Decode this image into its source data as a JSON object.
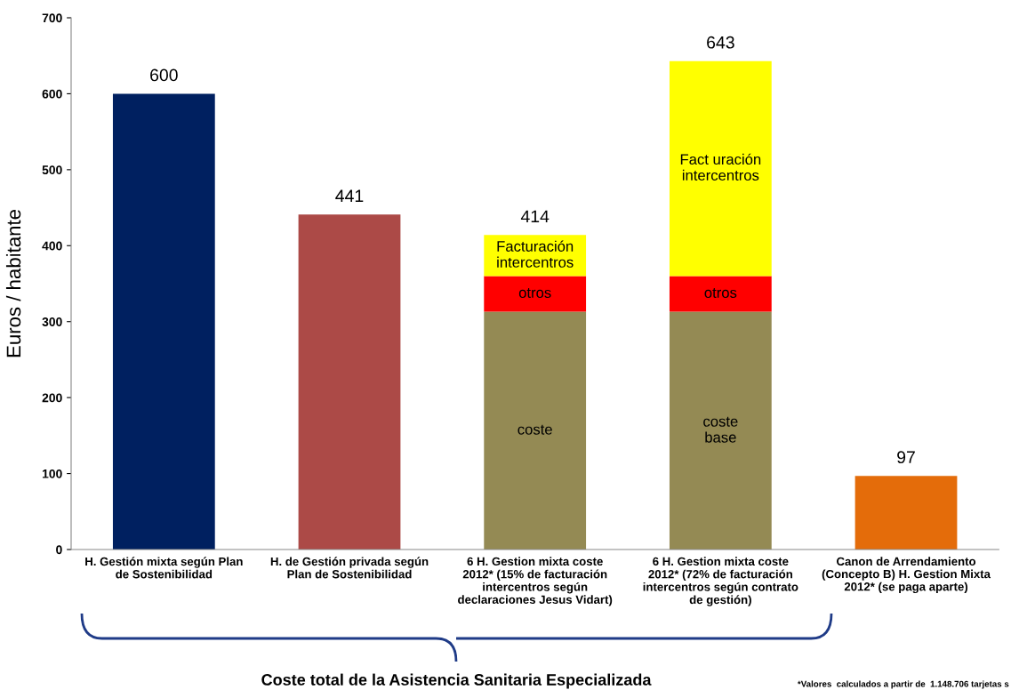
{
  "chart_data": {
    "type": "bar",
    "stacked": true,
    "categories": [
      "H. Gestión mixta según Plan\nde Sostenibilidad",
      "H. de Gestión privada según\nPlan de Sostenibilidad",
      "6 H. Gestion mixta coste\n2012* (15% de facturación\nintercentros según\ndeclaraciones Jesus Vidart)",
      "6 H. Gestion mixta coste\n2012* (72% de facturación\nintercentros según contrato\nde gestión)",
      "Canon de Arrendamiento\n(Concepto B) H. Gestion Mixta\n2012* (se paga aparte)"
    ],
    "series": [
      {
        "colors": [
          "#002060",
          "#ac4a47",
          "#948a54",
          "#948a54",
          "#e46c0a"
        ],
        "values": [
          600,
          441,
          313,
          313,
          97
        ]
      },
      {
        "color": "#ff0000",
        "values": [
          null,
          null,
          47,
          47,
          null
        ]
      },
      {
        "color": "#ffff00",
        "values": [
          null,
          null,
          54,
          283,
          null
        ]
      }
    ],
    "totals": [
      "600",
      "441",
      "414",
      "643",
      "97"
    ],
    "ylabel": "Euros / habitante",
    "ylim": [
      0,
      700
    ],
    "yticks": [
      0,
      100,
      200,
      300,
      400,
      500,
      600,
      700
    ],
    "grid": false,
    "legend": false,
    "annotations": [
      "Facturación\nintercentros",
      "otros",
      "coste",
      "Fact uración\nintercentros",
      "otros",
      "coste\nbase",
      "Coste total de la Asistencia Sanitaria Especializada",
      "*Valores  calculados a partir de  1.148.706 tarjetas s"
    ]
  }
}
